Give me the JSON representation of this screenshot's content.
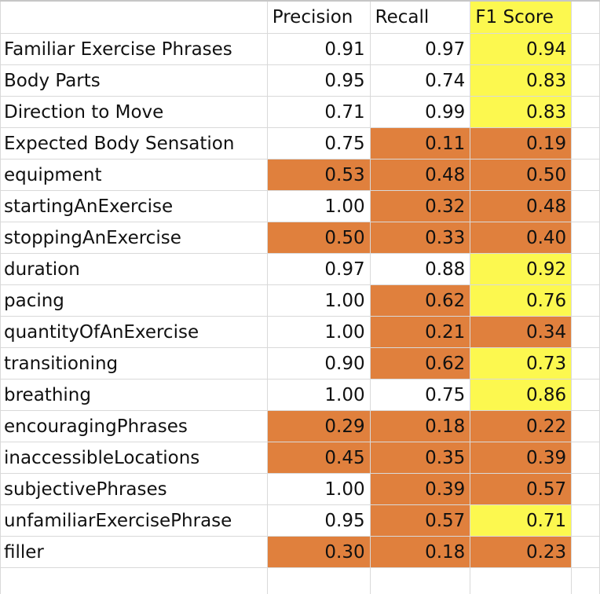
{
  "colors": {
    "orange": "#e0803d",
    "yellow": "#fcf84f",
    "white": "#ffffff",
    "gridline": "#d9d9d9"
  },
  "headers": [
    "Precision",
    "Recall",
    "F1 Score"
  ],
  "header_highlight": [
    "white",
    "white",
    "yellow"
  ],
  "rows": [
    {
      "label": "Familiar Exercise Phrases",
      "values": [
        "0.91",
        "0.97",
        "0.94"
      ],
      "highlight": [
        "white",
        "white",
        "yellow"
      ]
    },
    {
      "label": "Body Parts",
      "values": [
        "0.95",
        "0.74",
        "0.83"
      ],
      "highlight": [
        "white",
        "white",
        "yellow"
      ]
    },
    {
      "label": "Direction to Move",
      "values": [
        "0.71",
        "0.99",
        "0.83"
      ],
      "highlight": [
        "white",
        "white",
        "yellow"
      ]
    },
    {
      "label": "Expected Body Sensation",
      "values": [
        "0.75",
        "0.11",
        "0.19"
      ],
      "highlight": [
        "white",
        "orange",
        "orange"
      ]
    },
    {
      "label": "equipment",
      "values": [
        "0.53",
        "0.48",
        "0.50"
      ],
      "highlight": [
        "orange",
        "orange",
        "orange"
      ]
    },
    {
      "label": "startingAnExercise",
      "values": [
        "1.00",
        "0.32",
        "0.48"
      ],
      "highlight": [
        "white",
        "orange",
        "orange"
      ]
    },
    {
      "label": "stoppingAnExercise",
      "values": [
        "0.50",
        "0.33",
        "0.40"
      ],
      "highlight": [
        "orange",
        "orange",
        "orange"
      ]
    },
    {
      "label": "duration",
      "values": [
        "0.97",
        "0.88",
        "0.92"
      ],
      "highlight": [
        "white",
        "white",
        "yellow"
      ]
    },
    {
      "label": "pacing",
      "values": [
        "1.00",
        "0.62",
        "0.76"
      ],
      "highlight": [
        "white",
        "orange",
        "yellow"
      ]
    },
    {
      "label": "quantityOfAnExercise",
      "values": [
        "1.00",
        "0.21",
        "0.34"
      ],
      "highlight": [
        "white",
        "orange",
        "orange"
      ]
    },
    {
      "label": "transitioning",
      "values": [
        "0.90",
        "0.62",
        "0.73"
      ],
      "highlight": [
        "white",
        "orange",
        "yellow"
      ]
    },
    {
      "label": "breathing",
      "values": [
        "1.00",
        "0.75",
        "0.86"
      ],
      "highlight": [
        "white",
        "white",
        "yellow"
      ]
    },
    {
      "label": "encouragingPhrases",
      "values": [
        "0.29",
        "0.18",
        "0.22"
      ],
      "highlight": [
        "orange",
        "orange",
        "orange"
      ]
    },
    {
      "label": "inaccessibleLocations",
      "values": [
        "0.45",
        "0.35",
        "0.39"
      ],
      "highlight": [
        "orange",
        "orange",
        "orange"
      ]
    },
    {
      "label": "subjectivePhrases",
      "values": [
        "1.00",
        "0.39",
        "0.57"
      ],
      "highlight": [
        "white",
        "orange",
        "orange"
      ]
    },
    {
      "label": "unfamiliarExercisePhrase",
      "values": [
        "0.95",
        "0.57",
        "0.71"
      ],
      "highlight": [
        "white",
        "orange",
        "yellow"
      ]
    },
    {
      "label": "filler",
      "values": [
        "0.30",
        "0.18",
        "0.23"
      ],
      "highlight": [
        "orange",
        "orange",
        "orange"
      ]
    }
  ]
}
